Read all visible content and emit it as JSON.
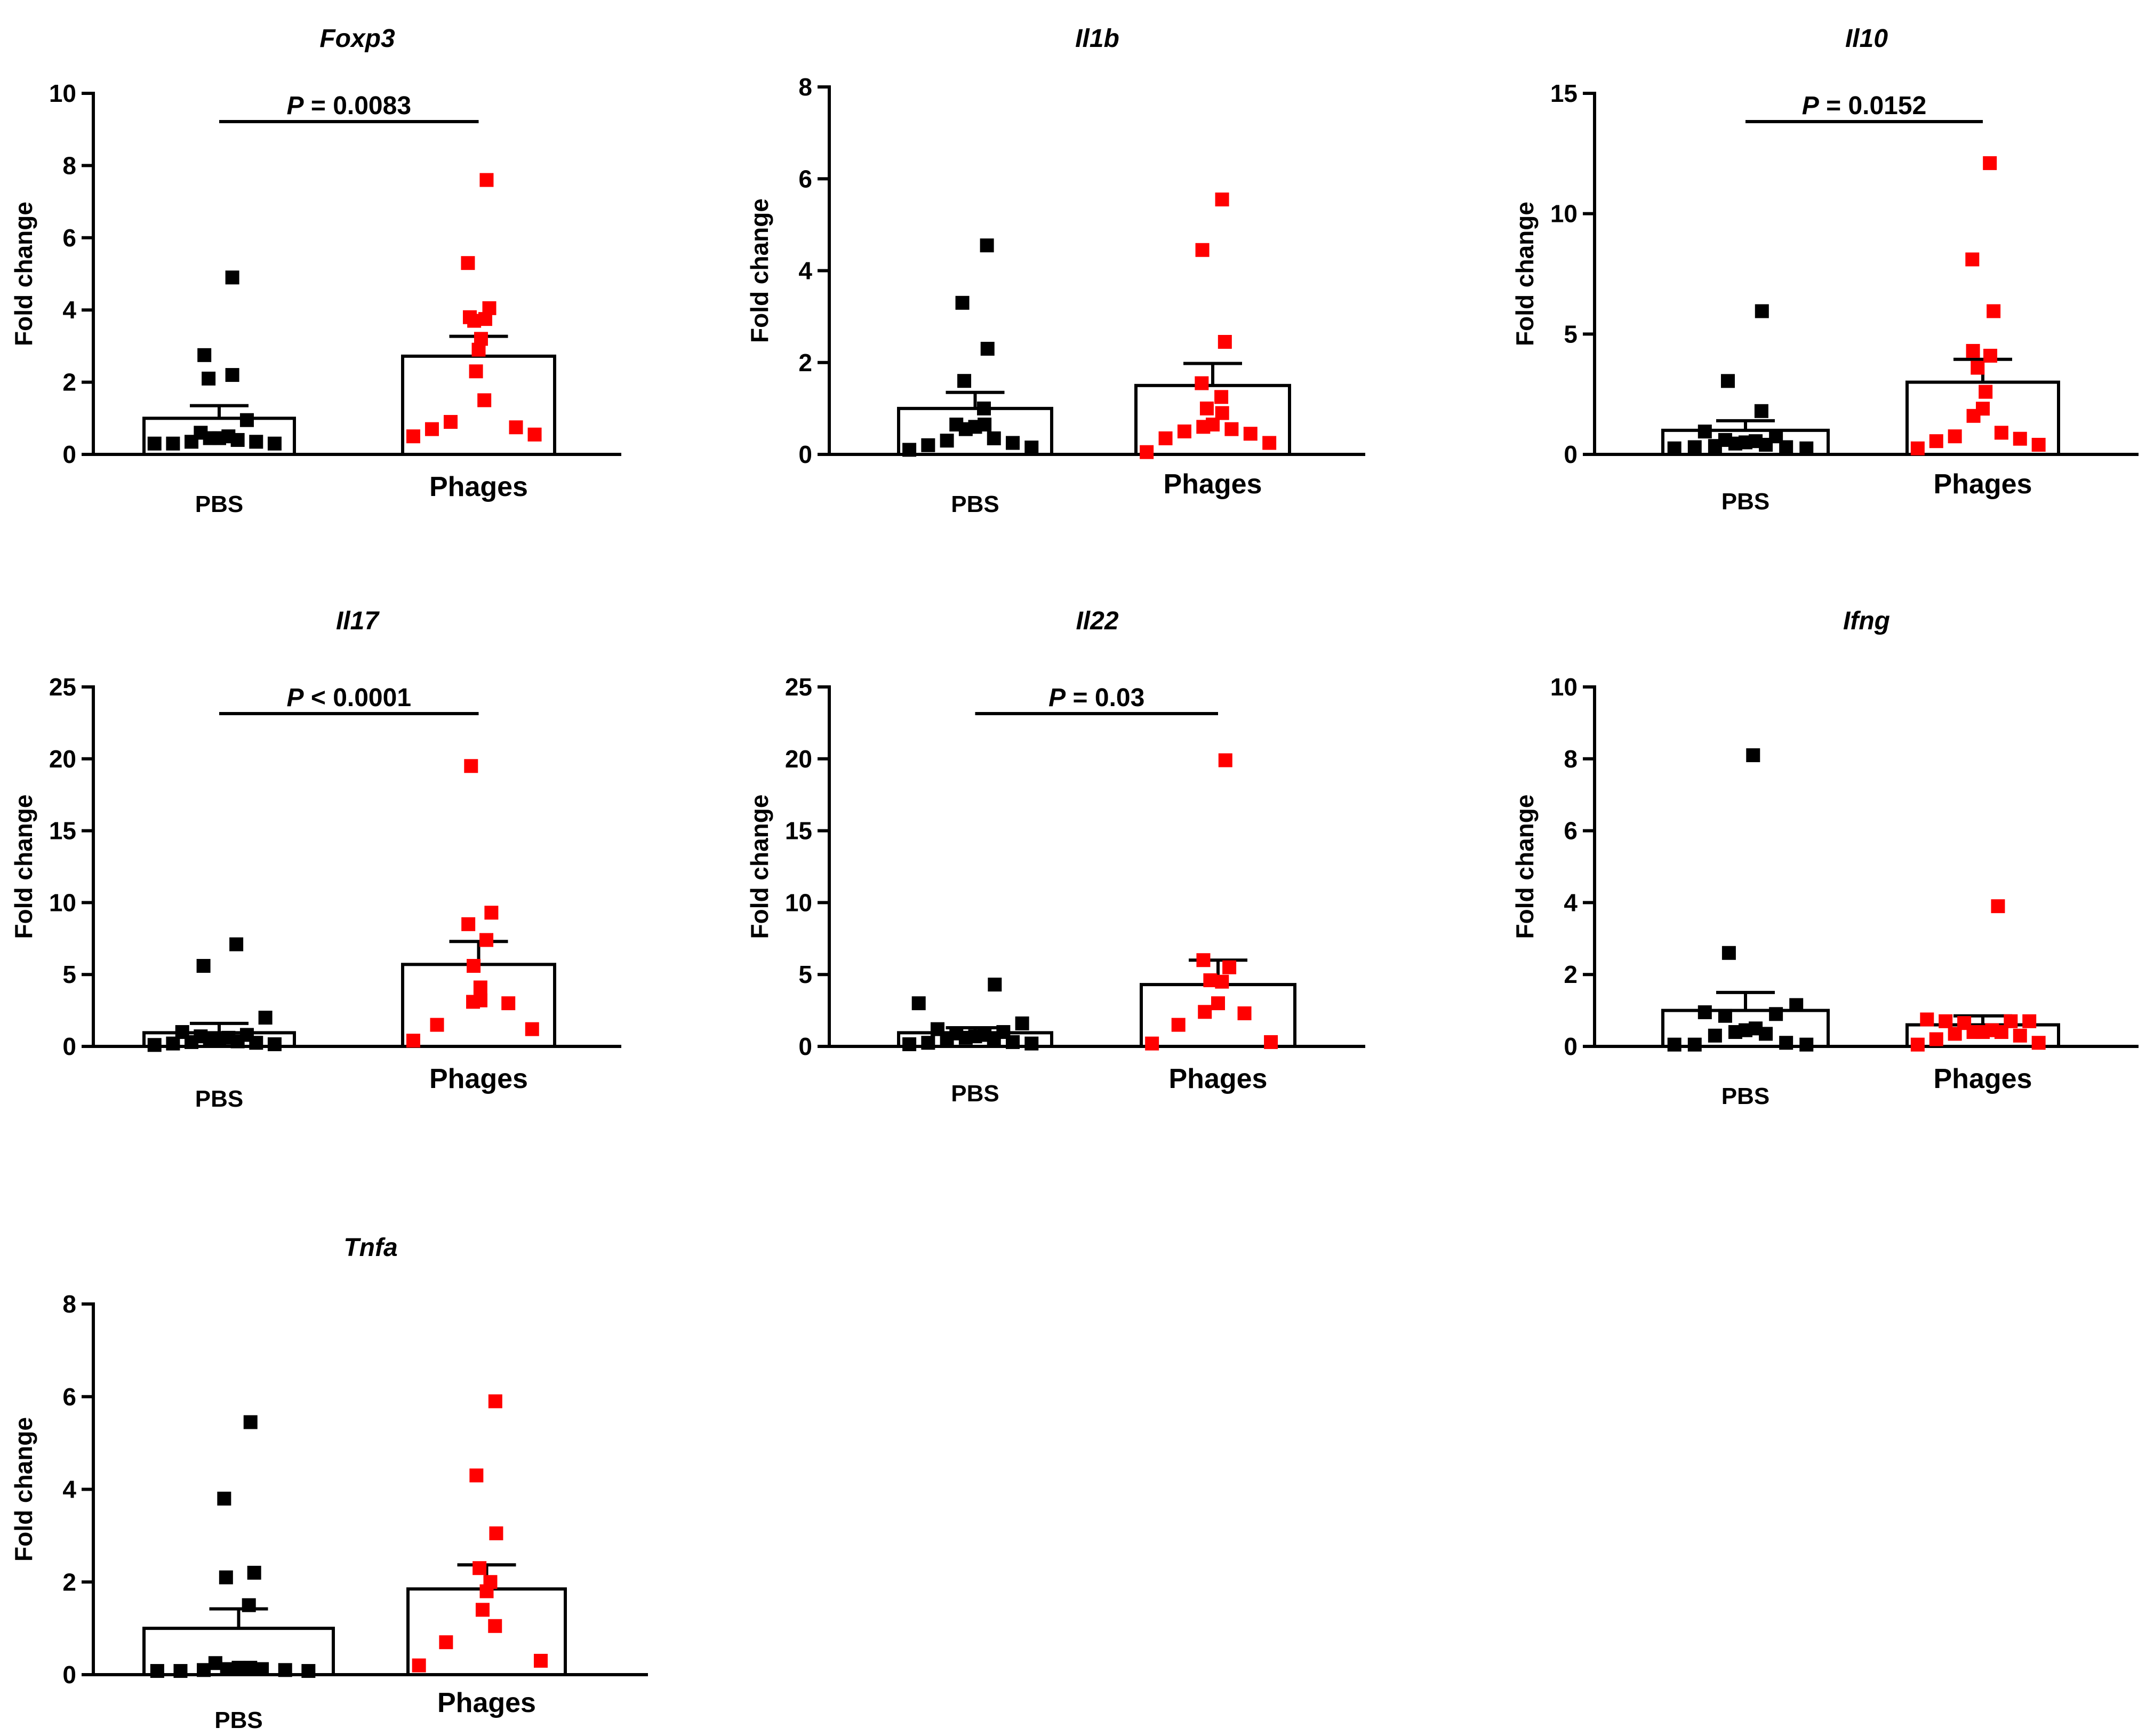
{
  "chart_data": [
    {
      "type": "scatter",
      "title": "Foxp3",
      "ylabel": "Fold change",
      "categories": [
        "PBS",
        "Phages"
      ],
      "ylim": [
        0,
        10
      ],
      "yticks": [
        0,
        2,
        4,
        6,
        8,
        10
      ],
      "significance": "P = 0.0083",
      "series": [
        {
          "name": "PBS",
          "color": "#000000",
          "mean": 1.0,
          "sem_upper": 1.35,
          "values": [
            4.9,
            2.75,
            2.2,
            2.1,
            0.95,
            0.6,
            0.5,
            0.45,
            0.35,
            0.3,
            0.3,
            0.3,
            0.35,
            0.4,
            0.45
          ]
        },
        {
          "name": "Phages",
          "color": "#ff0000",
          "mean": 2.72,
          "sem_upper": 3.27,
          "values": [
            7.6,
            5.3,
            4.05,
            3.8,
            3.75,
            3.7,
            3.2,
            2.9,
            2.3,
            1.5,
            0.9,
            0.75,
            0.7,
            0.55,
            0.5
          ]
        }
      ]
    },
    {
      "type": "scatter",
      "title": "Il1b",
      "ylabel": "Fold change",
      "categories": [
        "PBS",
        "Phages"
      ],
      "ylim": [
        0,
        8
      ],
      "yticks": [
        0,
        2,
        4,
        6,
        8
      ],
      "significance": "",
      "series": [
        {
          "name": "PBS",
          "color": "#000000",
          "mean": 1.0,
          "sem_upper": 1.35,
          "values": [
            4.55,
            3.3,
            2.3,
            1.6,
            1.0,
            0.65,
            0.65,
            0.6,
            0.55,
            0.35,
            0.3,
            0.25,
            0.2,
            0.15,
            0.1
          ]
        },
        {
          "name": "Phages",
          "color": "#ff0000",
          "mean": 1.5,
          "sem_upper": 1.98,
          "values": [
            5.55,
            4.45,
            2.45,
            1.55,
            1.25,
            1.0,
            0.9,
            0.65,
            0.6,
            0.55,
            0.5,
            0.45,
            0.35,
            0.25,
            0.05
          ]
        }
      ]
    },
    {
      "type": "scatter",
      "title": "Il10",
      "ylabel": "Fold change",
      "categories": [
        "PBS",
        "Phages"
      ],
      "ylim": [
        0,
        15
      ],
      "yticks": [
        0,
        5,
        10,
        15
      ],
      "significance": "P = 0.0152",
      "series": [
        {
          "name": "PBS",
          "color": "#000000",
          "mean": 1.0,
          "sem_upper": 1.4,
          "values": [
            5.95,
            3.05,
            1.8,
            0.95,
            0.75,
            0.6,
            0.55,
            0.45,
            0.35,
            0.3,
            0.25,
            0.25,
            0.3,
            0.4,
            0.5
          ]
        },
        {
          "name": "Phages",
          "color": "#ff0000",
          "mean": 3.0,
          "sem_upper": 3.95,
          "values": [
            12.1,
            8.1,
            5.95,
            4.3,
            4.1,
            3.6,
            2.6,
            1.9,
            1.6,
            0.9,
            0.75,
            0.65,
            0.55,
            0.4,
            0.25
          ]
        }
      ]
    },
    {
      "type": "scatter",
      "title": "Il17",
      "ylabel": "Fold change",
      "categories": [
        "PBS",
        "Phages"
      ],
      "ylim": [
        0,
        25
      ],
      "yticks": [
        0,
        5,
        10,
        15,
        20,
        25
      ],
      "significance": "P < 0.0001",
      "series": [
        {
          "name": "PBS",
          "color": "#000000",
          "mean": 0.95,
          "sem_upper": 1.6,
          "values": [
            7.1,
            5.6,
            2.0,
            1.0,
            0.8,
            0.7,
            0.6,
            0.5,
            0.4,
            0.35,
            0.3,
            0.25,
            0.2,
            0.15,
            0.1
          ]
        },
        {
          "name": "Phages",
          "color": "#ff0000",
          "mean": 5.7,
          "sem_upper": 7.3,
          "values": [
            19.5,
            9.3,
            8.5,
            7.4,
            5.6,
            4.1,
            3.2,
            3.1,
            3.0,
            1.5,
            1.2,
            0.4
          ]
        }
      ]
    },
    {
      "type": "scatter",
      "title": "Il22",
      "ylabel": "Fold change",
      "categories": [
        "PBS",
        "Phages"
      ],
      "ylim": [
        0,
        25
      ],
      "yticks": [
        0,
        5,
        10,
        15,
        20,
        25
      ],
      "significance": "P = 0.03",
      "series": [
        {
          "name": "PBS",
          "color": "#000000",
          "mean": 0.95,
          "sem_upper": 1.3,
          "values": [
            4.3,
            3.0,
            1.6,
            1.2,
            1.0,
            0.9,
            0.8,
            0.7,
            0.6,
            0.5,
            0.4,
            0.3,
            0.25,
            0.2,
            0.15
          ]
        },
        {
          "name": "Phages",
          "color": "#ff0000",
          "mean": 4.3,
          "sem_upper": 6.0,
          "values": [
            19.9,
            6.0,
            5.5,
            4.6,
            4.5,
            3.0,
            2.4,
            2.3,
            1.5,
            0.3,
            0.2
          ]
        }
      ]
    },
    {
      "type": "scatter",
      "title": "Ifng",
      "ylabel": "Fold change",
      "categories": [
        "PBS",
        "Phages"
      ],
      "ylim": [
        0,
        10
      ],
      "yticks": [
        0,
        2,
        4,
        6,
        8,
        10
      ],
      "significance": "",
      "series": [
        {
          "name": "PBS",
          "color": "#000000",
          "mean": 1.0,
          "sem_upper": 1.5,
          "values": [
            8.1,
            2.6,
            1.15,
            0.95,
            0.9,
            0.85,
            0.5,
            0.45,
            0.4,
            0.35,
            0.3,
            0.1,
            0.05,
            0.05,
            0.05
          ]
        },
        {
          "name": "Phages",
          "color": "#ff0000",
          "mean": 0.6,
          "sem_upper": 0.85,
          "values": [
            3.9,
            0.75,
            0.7,
            0.7,
            0.7,
            0.65,
            0.45,
            0.4,
            0.4,
            0.4,
            0.35,
            0.3,
            0.2,
            0.1,
            0.05
          ]
        }
      ]
    },
    {
      "type": "scatter",
      "title": "Tnfa",
      "ylabel": "Fold change",
      "categories": [
        "PBS",
        "Phages"
      ],
      "ylim": [
        0,
        8
      ],
      "yticks": [
        0,
        2,
        4,
        6,
        8
      ],
      "significance": "",
      "series": [
        {
          "name": "PBS",
          "color": "#000000",
          "mean": 1.0,
          "sem_upper": 1.42,
          "values": [
            5.45,
            3.8,
            2.2,
            2.1,
            1.5,
            0.25,
            0.15,
            0.12,
            0.1,
            0.08,
            0.08,
            0.08,
            0.1,
            0.12,
            0.15
          ]
        },
        {
          "name": "Phages",
          "color": "#ff0000",
          "mean": 1.85,
          "sem_upper": 2.37,
          "values": [
            5.9,
            4.3,
            3.05,
            2.3,
            2.0,
            1.8,
            1.4,
            1.05,
            0.7,
            0.3,
            0.2
          ]
        }
      ]
    }
  ]
}
